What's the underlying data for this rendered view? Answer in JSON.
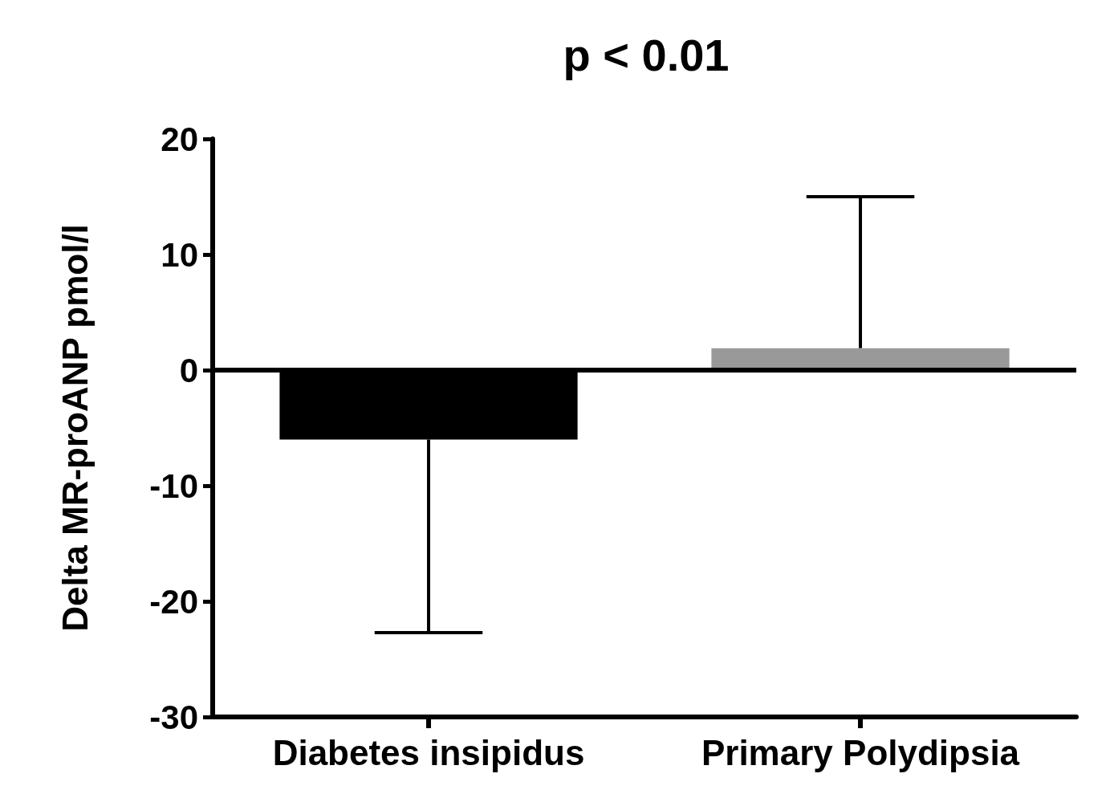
{
  "chart_data": {
    "type": "bar",
    "title": "p < 0.01",
    "ylabel": "Delta MR-proANP pmol/l",
    "categories": [
      "Diabetes insipidus",
      "Primary Polydipsia"
    ],
    "values": [
      -6.0,
      1.9
    ],
    "colors": [
      "#000000",
      "#999999"
    ],
    "errors": [
      [
        -22.7,
        -6.0
      ],
      [
        1.9,
        15.0
      ]
    ],
    "ref_lines": [
      {
        "axis": "y",
        "value": 0,
        "color": "#000000"
      }
    ],
    "ylim": [
      -30,
      20
    ],
    "yticks": [
      -30,
      -20,
      -10,
      0,
      10,
      20
    ],
    "grid": false
  }
}
